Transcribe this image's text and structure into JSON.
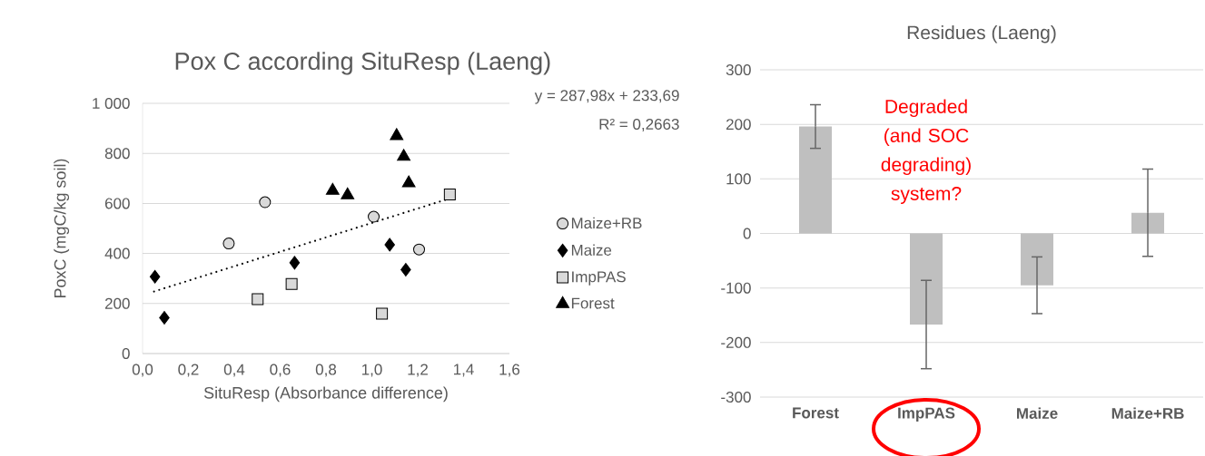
{
  "chart_data": [
    {
      "type": "scatter",
      "title": "Pox C according SituResp (Laeng)",
      "xlabel": "SituResp (Absorbance difference)",
      "ylabel": "PoxC (mgC/kg soil)",
      "xlim": [
        0,
        1.6
      ],
      "xticks": [
        {
          "value": 0,
          "label": "0,0"
        },
        {
          "value": 0.2,
          "label": "0,2"
        },
        {
          "value": 0.4,
          "label": "0,4"
        },
        {
          "value": 0.6,
          "label": "0,6"
        },
        {
          "value": 0.8,
          "label": "0,8"
        },
        {
          "value": 1.0,
          "label": "1,0"
        },
        {
          "value": 1.2,
          "label": "1,2"
        },
        {
          "value": 1.4,
          "label": "1,4"
        },
        {
          "value": 1.6,
          "label": "1,6"
        }
      ],
      "ylim": [
        0,
        1000
      ],
      "yticks": [
        0,
        200,
        400,
        600,
        800,
        {
          "value": 1000,
          "label": "1 000"
        }
      ],
      "grid": "y",
      "legend": "right",
      "series": [
        {
          "name": "Maize+RB",
          "color": "#d9d9d9",
          "marker": "circle",
          "x": [
            0.376,
            0.534,
            1.008,
            1.206
          ],
          "values": [
            440,
            605,
            547,
            416
          ]
        },
        {
          "name": "Maize",
          "color": "#000000",
          "marker": "diamond",
          "x": [
            0.054,
            0.095,
            0.663,
            1.078,
            1.148
          ],
          "values": [
            307,
            143,
            363,
            435,
            335
          ]
        },
        {
          "name": "ImpPAS",
          "color": "#d9d9d9",
          "marker": "square",
          "x": [
            0.502,
            0.65,
            1.044,
            1.34
          ],
          "values": [
            217,
            278,
            159,
            636
          ]
        },
        {
          "name": "Forest",
          "color": "#000000",
          "marker": "triangle",
          "x": [
            0.829,
            0.894,
            1.108,
            1.139,
            1.161
          ],
          "values": [
            651,
            633,
            870,
            787,
            681
          ]
        },
        {
          "type": "line",
          "color": "#000000",
          "marker": "none",
          "line_style": "dotted",
          "x": [
            0.05,
            1.34
          ],
          "values": [
            248,
            620
          ]
        }
      ],
      "annotations": [
        "y = 287,98x + 233,69",
        "R² = 0,2663"
      ]
    },
    {
      "type": "bar",
      "title": "Residues (Laeng)",
      "categories": [
        "Forest",
        "ImpPAS",
        "Maize",
        "Maize+RB"
      ],
      "values": [
        196,
        -167,
        -95,
        38
      ],
      "errors": [
        40,
        81,
        52,
        80
      ],
      "color": "#bfbfbf",
      "ylim": [
        -300,
        300
      ],
      "yticks": [
        -300,
        -200,
        -100,
        0,
        100,
        200,
        300
      ],
      "grid": "y",
      "annotations": [
        "Degraded (and SOC degrading) system?"
      ]
    }
  ]
}
